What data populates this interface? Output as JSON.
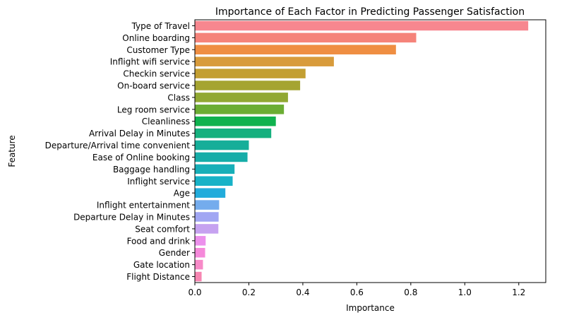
{
  "chart_data": {
    "type": "bar",
    "orientation": "horizontal",
    "title": "Importance of Each Factor in Predicting Passenger Satisfaction",
    "xlabel": "Importance",
    "ylabel": "Feature",
    "xlim": [
      0,
      1.3
    ],
    "xticks": [
      0.0,
      0.2,
      0.4,
      0.6,
      0.8,
      1.0,
      1.2
    ],
    "xtick_labels": [
      "0.0",
      "0.2",
      "0.4",
      "0.6",
      "0.8",
      "1.0",
      "1.2"
    ],
    "grid": false,
    "categories": [
      "Type of Travel",
      "Online boarding",
      "Customer Type",
      "Inflight wifi service",
      "Checkin service",
      "On-board service",
      "Class",
      "Leg room service",
      "Cleanliness",
      "Arrival Delay in Minutes",
      "Departure/Arrival time convenient",
      "Ease of Online booking",
      "Baggage handling",
      "Inflight service",
      "Age",
      "Inflight entertainment",
      "Departure Delay in Minutes",
      "Seat comfort",
      "Food and drink",
      "Gender",
      "Gate location",
      "Flight Distance"
    ],
    "values": [
      1.235,
      0.82,
      0.745,
      0.515,
      0.41,
      0.39,
      0.345,
      0.33,
      0.3,
      0.283,
      0.2,
      0.195,
      0.147,
      0.14,
      0.113,
      0.09,
      0.088,
      0.087,
      0.04,
      0.038,
      0.03,
      0.025
    ],
    "colors": [
      "#f7878f",
      "#f5837a",
      "#ef8e42",
      "#d89b3b",
      "#c39f32",
      "#a5a431",
      "#91a832",
      "#6bad33",
      "#0fb24e",
      "#15b07e",
      "#16ae99",
      "#16ada8",
      "#17afb8",
      "#17b2c7",
      "#22acdb",
      "#74aced",
      "#a1a6f3",
      "#c6a2f0",
      "#ec90ec",
      "#f589da",
      "#f78ac8",
      "#f786b2"
    ]
  }
}
